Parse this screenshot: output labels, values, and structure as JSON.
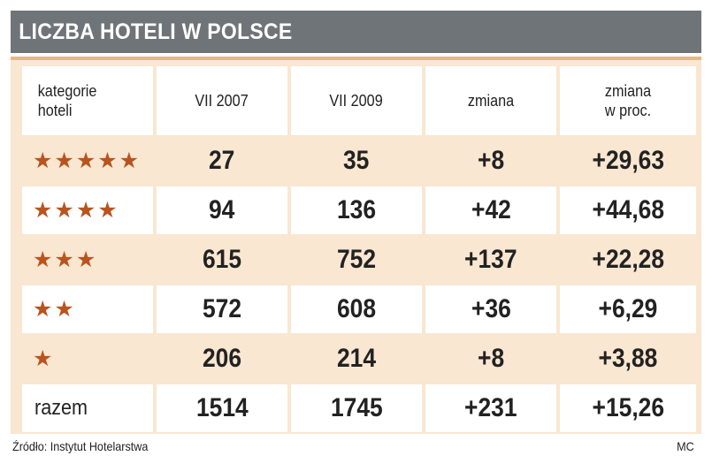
{
  "title": "LICZBA HOTELI W POLSCE",
  "headers": [
    "kategorie\nhoteli",
    "VII 2007",
    "VII 2009",
    "zmiana",
    "zmiana\nw proc."
  ],
  "rows": [
    {
      "label": "★★★★★",
      "v2007": "27",
      "v2009": "35",
      "change": "+8",
      "change_pct": "+29,63"
    },
    {
      "label": "★★★★",
      "v2007": "94",
      "v2009": "136",
      "change": "+42",
      "change_pct": "+44,68"
    },
    {
      "label": "★★★",
      "v2007": "615",
      "v2009": "752",
      "change": "+137",
      "change_pct": "+22,28"
    },
    {
      "label": "★★",
      "v2007": "572",
      "v2009": "608",
      "change": "+36",
      "change_pct": "+6,29"
    },
    {
      "label": "★",
      "v2007": "206",
      "v2009": "214",
      "change": "+8",
      "change_pct": "+3,88"
    }
  ],
  "total": {
    "label": "razem",
    "v2007": "1514",
    "v2009": "1745",
    "change": "+231",
    "change_pct": "+15,26"
  },
  "source": "Źródło: Instytut Hotelarstwa",
  "author": "MC",
  "colors": {
    "title_bg": "#6f7479",
    "tint_row": "#f9e7d1",
    "star": "#b9541f"
  }
}
